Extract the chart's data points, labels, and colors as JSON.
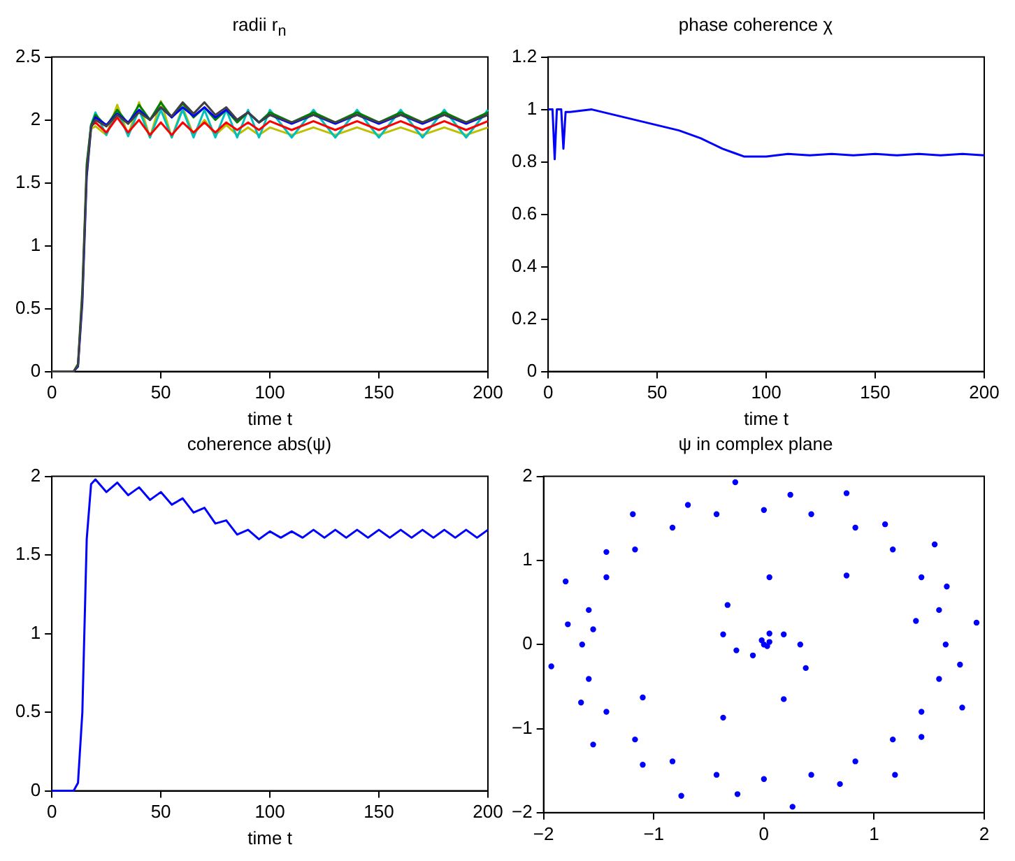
{
  "chart_data": [
    {
      "type": "line",
      "title": "radii r$_{n}$",
      "xlabel": "time t",
      "xlim": [
        0,
        200
      ],
      "xticks": [
        0,
        50,
        100,
        150,
        200
      ],
      "ylim": [
        0,
        2.5
      ],
      "yticks": [
        0,
        0.5,
        1,
        1.5,
        2,
        2.5
      ],
      "grid": false,
      "legend": false,
      "marker": "none",
      "line_style": "solid",
      "x": [
        0,
        10,
        12,
        14,
        16,
        18,
        20,
        25,
        30,
        35,
        40,
        45,
        50,
        55,
        60,
        65,
        70,
        75,
        80,
        85,
        90,
        95,
        100,
        110,
        120,
        130,
        140,
        150,
        160,
        170,
        180,
        190,
        200
      ],
      "series": [
        {
          "color": "#404040",
          "values": [
            0,
            0,
            0.05,
            0.6,
            1.6,
            1.95,
            2.0,
            1.95,
            2.04,
            1.97,
            2.06,
            2.0,
            2.1,
            2.03,
            2.14,
            2.05,
            2.14,
            2.04,
            2.1,
            2.0,
            2.06,
            1.98,
            2.04,
            1.98,
            2.04,
            1.98,
            2.04,
            1.98,
            2.04,
            1.98,
            2.04,
            1.98,
            2.04
          ]
        },
        {
          "color": "#0000ff",
          "values": [
            0,
            0,
            0.04,
            0.55,
            1.55,
            1.94,
            2.02,
            1.96,
            2.05,
            1.98,
            2.08,
            2.0,
            2.1,
            2.02,
            2.1,
            2.03,
            2.1,
            2.02,
            2.08,
            2.0,
            2.06,
            1.98,
            2.04,
            1.97,
            2.04,
            1.97,
            2.04,
            1.97,
            2.04,
            1.97,
            2.04,
            1.97,
            2.04
          ]
        },
        {
          "color": "#008000",
          "values": [
            0,
            0,
            0.06,
            0.65,
            1.65,
            1.96,
            2.04,
            1.95,
            2.08,
            1.97,
            2.12,
            2.0,
            2.14,
            2.02,
            2.13,
            2.02,
            2.1,
            2.0,
            2.08,
            1.98,
            2.06,
            1.98,
            2.06,
            1.98,
            2.06,
            1.98,
            2.06,
            1.98,
            2.06,
            1.98,
            2.06,
            1.98,
            2.06
          ]
        },
        {
          "color": "#ff0000",
          "values": [
            null,
            null,
            null,
            null,
            null,
            1.95,
            1.98,
            1.9,
            2.02,
            1.9,
            2.0,
            1.88,
            1.98,
            1.88,
            1.98,
            1.9,
            1.98,
            1.9,
            1.98,
            1.92,
            1.98,
            1.92,
            1.99,
            1.92,
            1.99,
            1.92,
            1.99,
            1.92,
            1.99,
            1.92,
            1.99,
            1.92,
            1.99
          ]
        },
        {
          "color": "#00bfbf",
          "values": [
            null,
            null,
            null,
            null,
            1.62,
            1.96,
            2.06,
            1.88,
            2.08,
            1.87,
            2.08,
            1.86,
            2.08,
            1.86,
            2.08,
            1.86,
            2.08,
            1.86,
            2.08,
            1.86,
            2.08,
            1.86,
            2.08,
            1.86,
            2.08,
            1.86,
            2.08,
            1.86,
            2.08,
            1.86,
            2.08,
            1.86,
            2.08
          ]
        },
        {
          "color": "#bfbf00",
          "values": [
            null,
            null,
            null,
            null,
            1.56,
            1.93,
            1.95,
            1.88,
            2.12,
            1.88,
            2.14,
            1.86,
            2.15,
            1.86,
            2.1,
            1.88,
            2.0,
            1.88,
            1.96,
            1.88,
            1.94,
            1.88,
            1.94,
            1.88,
            1.94,
            1.88,
            1.94,
            1.88,
            1.94,
            1.88,
            1.94,
            1.88,
            1.94
          ]
        }
      ]
    },
    {
      "type": "line",
      "title": "phase coherence χ",
      "xlabel": "time t",
      "xlim": [
        0,
        200
      ],
      "xticks": [
        0,
        50,
        100,
        150,
        200
      ],
      "ylim": [
        0,
        1.2
      ],
      "yticks": [
        0,
        0.2,
        0.4,
        0.6,
        0.8,
        1,
        1.2
      ],
      "grid": false,
      "legend": false,
      "marker": "none",
      "line_style": "solid",
      "x": [
        0,
        2,
        3,
        4,
        6,
        7,
        8,
        10,
        20,
        30,
        40,
        50,
        60,
        70,
        80,
        85,
        90,
        95,
        100,
        110,
        120,
        130,
        140,
        150,
        160,
        170,
        180,
        190,
        200
      ],
      "series": [
        {
          "color": "#0000ff",
          "values": [
            1,
            1,
            0.81,
            1,
            1,
            0.85,
            0.99,
            0.99,
            1,
            0.98,
            0.96,
            0.94,
            0.92,
            0.89,
            0.85,
            0.835,
            0.82,
            0.82,
            0.82,
            0.83,
            0.825,
            0.83,
            0.825,
            0.83,
            0.825,
            0.83,
            0.825,
            0.83,
            0.825
          ]
        }
      ]
    },
    {
      "type": "line",
      "title": "coherence abs(ψ)",
      "xlabel": "time t",
      "xlim": [
        0,
        200
      ],
      "xticks": [
        0,
        50,
        100,
        150,
        200
      ],
      "ylim": [
        0,
        2
      ],
      "yticks": [
        0,
        0.5,
        1,
        1.5,
        2
      ],
      "grid": false,
      "legend": false,
      "marker": "none",
      "line_style": "solid",
      "x": [
        0,
        10,
        12,
        14,
        16,
        18,
        20,
        25,
        30,
        35,
        40,
        45,
        50,
        55,
        60,
        65,
        70,
        75,
        80,
        85,
        90,
        95,
        100,
        105,
        110,
        115,
        120,
        125,
        130,
        135,
        140,
        145,
        150,
        155,
        160,
        165,
        170,
        175,
        180,
        185,
        190,
        195,
        200
      ],
      "series": [
        {
          "color": "#0000ff",
          "values": [
            0,
            0,
            0.05,
            0.5,
            1.6,
            1.95,
            1.98,
            1.9,
            1.96,
            1.88,
            1.93,
            1.85,
            1.9,
            1.82,
            1.86,
            1.77,
            1.8,
            1.7,
            1.72,
            1.63,
            1.66,
            1.6,
            1.65,
            1.61,
            1.65,
            1.61,
            1.66,
            1.61,
            1.66,
            1.61,
            1.66,
            1.61,
            1.66,
            1.61,
            1.66,
            1.61,
            1.66,
            1.61,
            1.66,
            1.61,
            1.66,
            1.61,
            1.66
          ]
        }
      ]
    },
    {
      "type": "scatter",
      "title": "ψ in complex plane",
      "xlim": [
        -2,
        2
      ],
      "xticks": [
        {
          "value": -2,
          "label": "−2"
        },
        {
          "value": -1,
          "label": "−1"
        },
        0,
        1,
        2
      ],
      "ylim": [
        -2,
        2
      ],
      "yticks": [
        {
          "value": -2,
          "label": "−2"
        },
        {
          "value": -1,
          "label": "−1"
        },
        0,
        1,
        2
      ],
      "grid": false,
      "legend": false,
      "marker": "circle",
      "series": [
        {
          "color": "#0000ff",
          "x": [
            1.65,
            1.59,
            1.43,
            1.17,
            0.83,
            0.43,
            0,
            -0.43,
            -0.83,
            -1.17,
            -1.43,
            -1.59,
            -1.65,
            -1.59,
            -1.43,
            -1.17,
            -0.83,
            -0.43,
            0,
            0.43,
            0.83,
            1.17,
            1.43,
            1.59,
            1.93,
            1.66,
            1.55,
            1.1,
            0.75,
            0.24,
            -0.26,
            -0.69,
            -1.19,
            -1.43,
            -1.8,
            -1.78,
            -1.93,
            -1.66,
            -1.55,
            -1.1,
            -0.75,
            -0.24,
            0.26,
            0.69,
            1.19,
            1.43,
            1.8,
            1.78,
            0.05,
            0.75,
            -0.33,
            -0.37,
            0.18,
            -0.25,
            0.33,
            0.38,
            1.38,
            -1.55,
            -1.1,
            -0.37,
            0.18,
            0,
            0.05,
            -0.02,
            0.03,
            -0.1,
            0.05
          ],
          "values": [
            0,
            0.41,
            0.8,
            1.13,
            1.39,
            1.55,
            1.6,
            1.55,
            1.39,
            1.13,
            0.8,
            0.41,
            0,
            -0.41,
            -0.8,
            -1.13,
            -1.39,
            -1.55,
            -1.6,
            -1.55,
            -1.39,
            -1.13,
            -0.8,
            -0.41,
            0.26,
            0.69,
            1.19,
            1.43,
            1.8,
            1.78,
            1.93,
            1.66,
            1.55,
            1.1,
            0.75,
            0.24,
            -0.26,
            -0.69,
            -1.19,
            -1.43,
            -1.8,
            -1.78,
            -1.93,
            -1.66,
            -1.55,
            -1.1,
            -0.75,
            -0.24,
            0.8,
            0.82,
            0.47,
            0.12,
            0.12,
            -0.07,
            0,
            -0.28,
            0.28,
            0.18,
            -0.63,
            -0.87,
            -0.65,
            0,
            0.03,
            0.05,
            -0.02,
            -0.13,
            0.13
          ]
        }
      ]
    }
  ]
}
